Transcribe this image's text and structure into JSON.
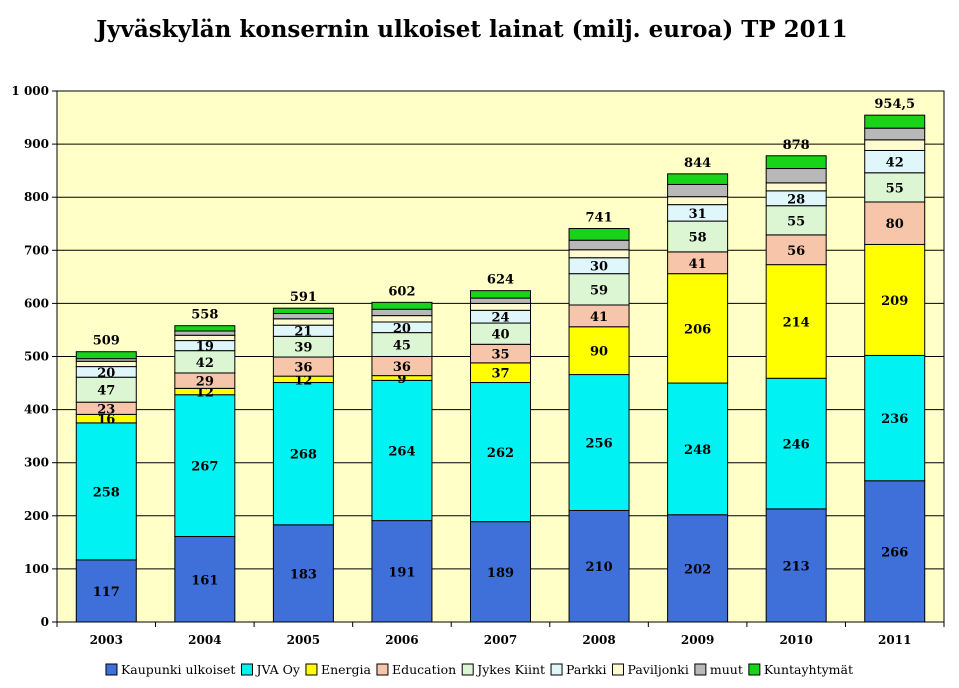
{
  "chart_data": {
    "type": "bar",
    "stacked": true,
    "title": "Jyväskylän konsernin ulkoiset lainat (milj. euroa) TP 2011",
    "xlabel": "",
    "ylabel": "",
    "ylim": [
      0,
      1000
    ],
    "yticks": [
      0,
      100,
      200,
      300,
      400,
      500,
      600,
      700,
      800,
      900,
      1000
    ],
    "ytick_labels": [
      "0",
      "100",
      "200",
      "300",
      "400",
      "500",
      "600",
      "700",
      "800",
      "900",
      "1 000"
    ],
    "grid": true,
    "legend_position": "bottom",
    "categories": [
      "2003",
      "2004",
      "2005",
      "2006",
      "2007",
      "2008",
      "2009",
      "2010",
      "2011"
    ],
    "totals": [
      "509",
      "558",
      "591",
      "602",
      "624",
      "741",
      "844",
      "878",
      "954,5"
    ],
    "series": [
      {
        "name": "Kaupunki ulkoiset",
        "color": "#3f6fd8",
        "values": [
          117,
          161,
          183,
          191,
          189,
          210,
          202,
          213,
          266
        ],
        "labels": [
          "117",
          "161",
          "183",
          "191",
          "189",
          "210",
          "202",
          "213",
          "266"
        ]
      },
      {
        "name": "JVA Oy",
        "color": "#00f2f2",
        "values": [
          258,
          267,
          268,
          264,
          262,
          256,
          248,
          246,
          236
        ],
        "labels": [
          "258",
          "267",
          "268",
          "264",
          "262",
          "256",
          "248",
          "246",
          "236"
        ]
      },
      {
        "name": "Energia",
        "color": "#ffff00",
        "values": [
          16,
          12,
          12,
          9,
          37,
          90,
          206,
          214,
          209
        ],
        "labels": [
          "16",
          "12",
          "12",
          "9",
          "37",
          "90",
          "206",
          "214",
          "209"
        ]
      },
      {
        "name": "Education",
        "color": "#f7c5aa",
        "values": [
          23,
          29,
          36,
          36,
          35,
          41,
          41,
          56,
          80
        ],
        "labels": [
          "23",
          "29",
          "36",
          "36",
          "35",
          "41",
          "41",
          "56",
          "80"
        ]
      },
      {
        "name": "Jykes Kiint",
        "color": "#dcf5d2",
        "values": [
          47,
          42,
          39,
          45,
          40,
          59,
          58,
          55,
          55
        ],
        "labels": [
          "47",
          "42",
          "39",
          "45",
          "40",
          "59",
          "58",
          "55",
          "55"
        ]
      },
      {
        "name": "Parkki",
        "color": "#dff6fb",
        "values": [
          20,
          19,
          21,
          20,
          24,
          30,
          31,
          28,
          42
        ],
        "labels": [
          "20",
          "19",
          "21",
          "20",
          "24",
          "30",
          "31",
          "28",
          "42"
        ]
      },
      {
        "name": "Paviljonki",
        "color": "#fdfbcf",
        "values": [
          10,
          10,
          12,
          12,
          13,
          15,
          15,
          15,
          20
        ],
        "labels": [
          "",
          "",
          "",
          "",
          "",
          "",
          "",
          "",
          ""
        ]
      },
      {
        "name": "muut",
        "color": "#b8b8b8",
        "values": [
          5,
          8,
          10,
          12,
          10,
          18,
          23,
          27,
          22
        ],
        "labels": [
          "",
          "",
          "",
          "",
          "",
          "",
          "",
          "",
          ""
        ]
      },
      {
        "name": "Kuntayhtymät",
        "color": "#18d418",
        "values": [
          13,
          10,
          10,
          13,
          14,
          22,
          20,
          24,
          24.5
        ],
        "labels": [
          "",
          "",
          "",
          "",
          "",
          "",
          "",
          "",
          ""
        ]
      }
    ]
  }
}
